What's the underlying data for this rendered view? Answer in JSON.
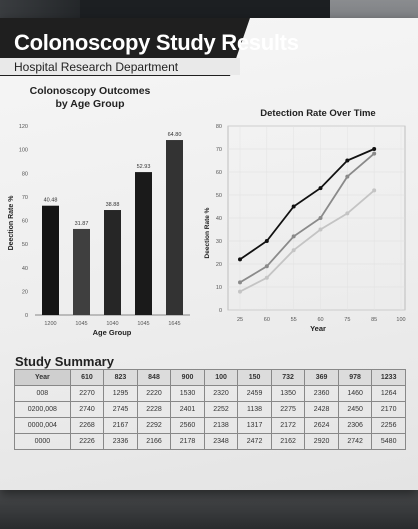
{
  "header": {
    "title": "Colonoscopy Study Results",
    "subtitle": "Hospital Research Department"
  },
  "chart_data": [
    {
      "type": "bar",
      "title": "Colonoscopy Outcomes by Age Group",
      "title_lines": [
        "Colonoscopy Outcomes",
        "by Age Group"
      ],
      "xlabel": "Age Group",
      "ylabel": "Deection Rate %",
      "categories": [
        "1200",
        "1045",
        "1040",
        "1045",
        "1645"
      ],
      "values": [
        40.48,
        31.87,
        38.88,
        52.93,
        64.8
      ],
      "value_labels": [
        "40.48",
        "31.87",
        "38.88",
        "52.93",
        "64.80"
      ],
      "yticks": [
        "0",
        "20",
        "40",
        "50",
        "60",
        "70",
        "80",
        "100",
        "120"
      ],
      "colors": [
        "#141414",
        "#3f3f3f",
        "#262626",
        "#1a1a1a",
        "#333333"
      ]
    },
    {
      "type": "line",
      "title": "Detection Rate Over Time",
      "xlabel": "Year",
      "ylabel": "Deection Rate %",
      "xticks": [
        "25",
        "60",
        "55",
        "60",
        "75",
        "85",
        "100"
      ],
      "yticks": [
        "0",
        "10",
        "20",
        "30",
        "40",
        "50",
        "60",
        "70",
        "80"
      ],
      "ylim": [
        0,
        80
      ],
      "series": [
        {
          "color": "#111111",
          "values": [
            22,
            30,
            45,
            53,
            65,
            70
          ]
        },
        {
          "color": "#8a8a8a",
          "values": [
            12,
            19,
            32,
            40,
            58,
            68
          ]
        },
        {
          "color": "#c4c4c4",
          "values": [
            8,
            14,
            26,
            35,
            42,
            52
          ]
        }
      ]
    }
  ],
  "summary": {
    "title": "Study Summary",
    "headers": [
      "Year",
      "610",
      "823",
      "848",
      "900",
      "100",
      "150",
      "732",
      "369",
      "978",
      "1233"
    ],
    "rows": [
      [
        "008",
        "2270",
        "1295",
        "2220",
        "1530",
        "2320",
        "2459",
        "1350",
        "2360",
        "1460",
        "1264"
      ],
      [
        "0200,008",
        "2740",
        "2745",
        "2228",
        "2401",
        "2252",
        "1138",
        "2275",
        "2428",
        "2450",
        "2170"
      ],
      [
        "0000,004",
        "2268",
        "2167",
        "2292",
        "2560",
        "2138",
        "1317",
        "2172",
        "2624",
        "2306",
        "2256"
      ],
      [
        "0000",
        "2226",
        "2336",
        "2166",
        "2178",
        "2348",
        "2472",
        "2162",
        "2920",
        "2742",
        "5480"
      ]
    ]
  }
}
